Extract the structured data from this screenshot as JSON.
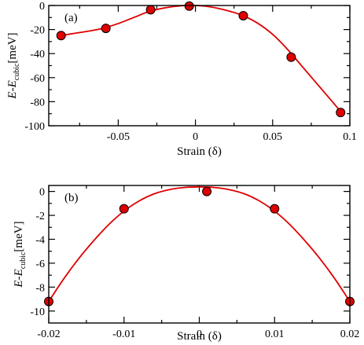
{
  "chart_data": [
    {
      "type": "scatter",
      "panel_label": "(a)",
      "xlabel": "Strain (δ)",
      "ylabel": "E-E_cubic[meV]",
      "xlim": [
        -0.095,
        0.1
      ],
      "ylim": [
        -100,
        0
      ],
      "xticks": [
        -0.05,
        0,
        0.05,
        0.1
      ],
      "xtick_labels": [
        "-0.05",
        "0",
        "0.05",
        "0.1"
      ],
      "yticks": [
        -100,
        -80,
        -60,
        -40,
        -20,
        0
      ],
      "ytick_labels": [
        "-100",
        "-80",
        "-60",
        "-40",
        "-20",
        "0"
      ],
      "points": [
        {
          "x": -0.087,
          "y": -25
        },
        {
          "x": -0.058,
          "y": -19
        },
        {
          "x": -0.029,
          "y": -3.5
        },
        {
          "x": -0.004,
          "y": -0.5
        },
        {
          "x": 0.031,
          "y": -8.5
        },
        {
          "x": 0.062,
          "y": -43
        },
        {
          "x": 0.094,
          "y": -89
        }
      ],
      "fit_curve": [
        {
          "x": -0.087,
          "y": -25
        },
        {
          "x": -0.08,
          "y": -23.5
        },
        {
          "x": -0.07,
          "y": -21.5
        },
        {
          "x": -0.06,
          "y": -19
        },
        {
          "x": -0.05,
          "y": -15
        },
        {
          "x": -0.04,
          "y": -10
        },
        {
          "x": -0.03,
          "y": -5
        },
        {
          "x": -0.02,
          "y": -2
        },
        {
          "x": -0.01,
          "y": -0.3
        },
        {
          "x": 0.0,
          "y": 0
        },
        {
          "x": 0.01,
          "y": -1.2
        },
        {
          "x": 0.02,
          "y": -4
        },
        {
          "x": 0.03,
          "y": -8
        },
        {
          "x": 0.04,
          "y": -14.5
        },
        {
          "x": 0.05,
          "y": -24
        },
        {
          "x": 0.06,
          "y": -37
        },
        {
          "x": 0.07,
          "y": -52
        },
        {
          "x": 0.08,
          "y": -67
        },
        {
          "x": 0.09,
          "y": -82
        },
        {
          "x": 0.095,
          "y": -90
        }
      ],
      "grid": false
    },
    {
      "type": "scatter",
      "panel_label": "(b)",
      "xlabel": "Strain (δ)",
      "ylabel": "E-E_cubic[meV]",
      "xlim": [
        -0.02,
        0.02
      ],
      "ylim": [
        -11,
        0.5
      ],
      "xticks": [
        -0.02,
        -0.01,
        0,
        0.01,
        0.02
      ],
      "xtick_labels": [
        "-0.02",
        "-0.01",
        "0",
        "0.01",
        "0.02"
      ],
      "yticks": [
        -10,
        -8,
        -6,
        -4,
        -2,
        0
      ],
      "ytick_labels": [
        "-10",
        "-8",
        "-6",
        "-4",
        "-2",
        "0"
      ],
      "points": [
        {
          "x": -0.02,
          "y": -9.2
        },
        {
          "x": -0.01,
          "y": -1.45
        },
        {
          "x": 0.001,
          "y": 0.0
        },
        {
          "x": 0.01,
          "y": -1.45
        },
        {
          "x": 0.02,
          "y": -9.2
        }
      ],
      "fit_curve": [
        {
          "x": -0.02,
          "y": -9.2
        },
        {
          "x": -0.018,
          "y": -7.3
        },
        {
          "x": -0.016,
          "y": -5.6
        },
        {
          "x": -0.014,
          "y": -4.1
        },
        {
          "x": -0.012,
          "y": -2.75
        },
        {
          "x": -0.01,
          "y": -1.65
        },
        {
          "x": -0.008,
          "y": -0.8
        },
        {
          "x": -0.006,
          "y": -0.2
        },
        {
          "x": -0.004,
          "y": 0.15
        },
        {
          "x": -0.002,
          "y": 0.33
        },
        {
          "x": 0.0,
          "y": 0.38
        },
        {
          "x": 0.002,
          "y": 0.33
        },
        {
          "x": 0.004,
          "y": 0.15
        },
        {
          "x": 0.006,
          "y": -0.2
        },
        {
          "x": 0.008,
          "y": -0.8
        },
        {
          "x": 0.01,
          "y": -1.65
        },
        {
          "x": 0.012,
          "y": -2.75
        },
        {
          "x": 0.014,
          "y": -4.1
        },
        {
          "x": 0.016,
          "y": -5.6
        },
        {
          "x": 0.018,
          "y": -7.3
        },
        {
          "x": 0.02,
          "y": -9.2
        }
      ],
      "grid": false
    }
  ],
  "colors": {
    "curve": "#e00000",
    "marker_fill": "#e00000",
    "marker_edge": "#000000"
  },
  "ylabel_parts": {
    "main": "E-E",
    "sub": "cubic",
    "unit": "[meV]"
  }
}
